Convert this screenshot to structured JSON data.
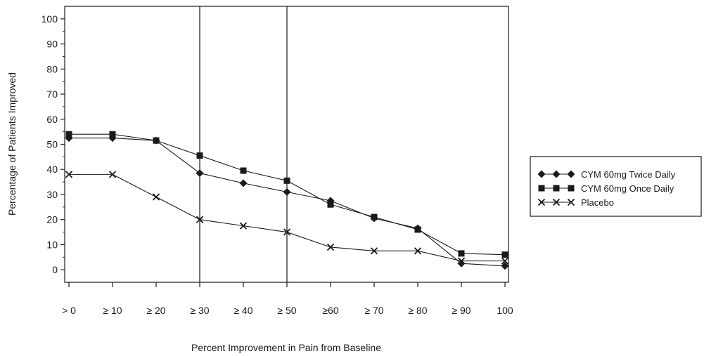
{
  "chart_data": {
    "type": "line",
    "title": "",
    "xlabel": "Percent Improvement in Pain from Baseline",
    "ylabel": "Percentage of Patients Improved",
    "categories": [
      "> 0",
      "≥ 10",
      "≥ 20",
      "≥ 30",
      "≥ 40",
      "≥ 50",
      "≥60",
      "≥ 70",
      "≥ 80",
      "≥ 90",
      "100"
    ],
    "ylim": [
      -5,
      105
    ],
    "yticks": [
      0,
      10,
      20,
      30,
      40,
      50,
      60,
      70,
      80,
      90,
      100
    ],
    "reference_lines_at": [
      "≥ 30",
      "≥ 50"
    ],
    "grid": false,
    "legend_position": "right",
    "series": [
      {
        "name": "CYM 60mg Twice Daily",
        "marker": "diamond",
        "values": [
          52.5,
          52.5,
          51.5,
          38.5,
          34.5,
          31,
          27.5,
          20.5,
          16.5,
          2.5,
          1.5
        ]
      },
      {
        "name": "CYM 60mg Once Daily",
        "marker": "square",
        "values": [
          54,
          54,
          51.5,
          45.5,
          39.5,
          35.5,
          26,
          21,
          16,
          6.5,
          6
        ]
      },
      {
        "name": "Placebo",
        "marker": "x",
        "values": [
          38,
          38,
          29,
          20,
          17.5,
          15,
          9,
          7.5,
          7.5,
          3.5,
          3.5
        ]
      }
    ]
  }
}
